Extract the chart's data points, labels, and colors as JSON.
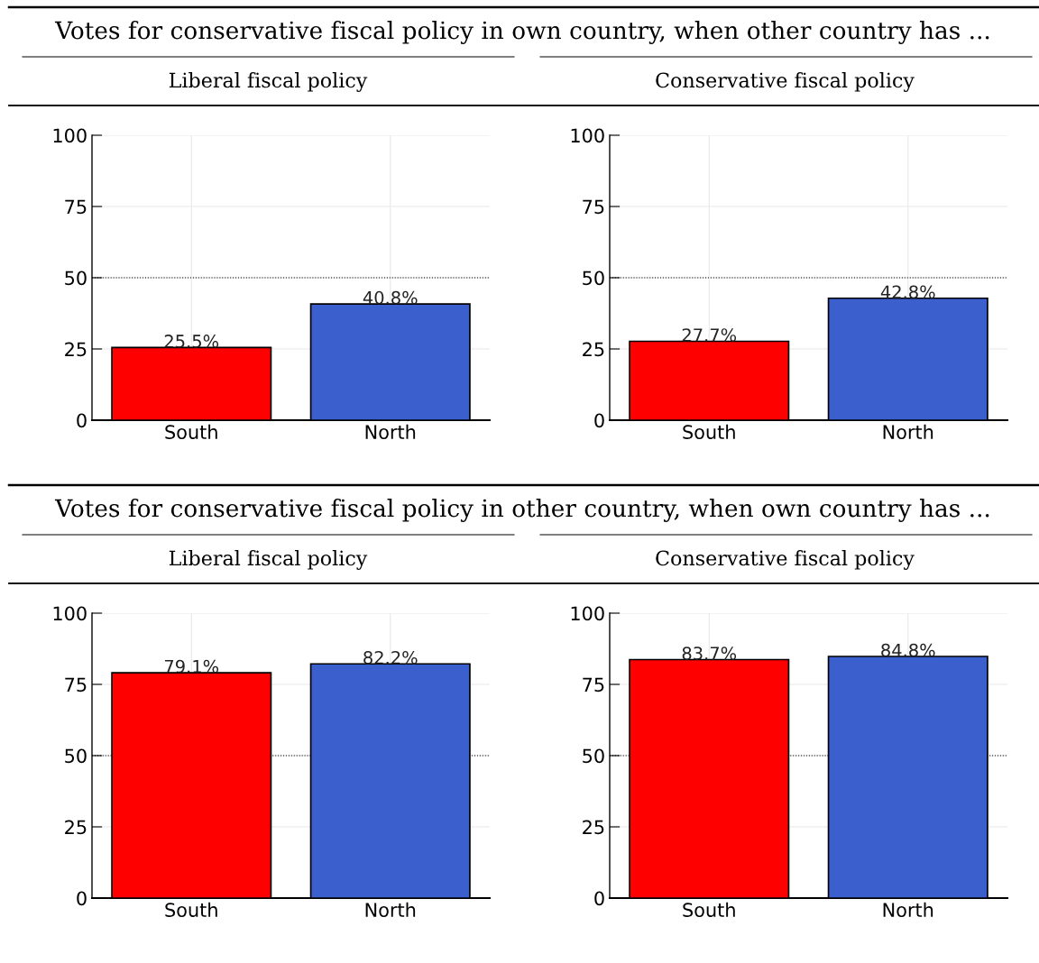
{
  "chart_data": [
    {
      "type": "bar",
      "title": "Liberal fiscal policy",
      "annotations": [
        "Votes for conservative fiscal policy in own country, when other country has ..."
      ],
      "categories": [
        "South",
        "North"
      ],
      "values": [
        25.5,
        40.8
      ],
      "colors": [
        "#ff0000",
        "#3b5fcd"
      ],
      "value_labels": [
        "25.5%",
        "40.8%"
      ],
      "ylim": [
        0,
        100
      ],
      "yticks": [
        0,
        25,
        50,
        75,
        100
      ],
      "grid": true,
      "legend": false,
      "ref_lines": [
        {
          "axis": "y",
          "value": 50,
          "line_style": "dotted",
          "color": "#000000"
        }
      ]
    },
    {
      "type": "bar",
      "title": "Conservative fiscal policy",
      "categories": [
        "South",
        "North"
      ],
      "values": [
        27.7,
        42.8
      ],
      "colors": [
        "#ff0000",
        "#3b5fcd"
      ],
      "value_labels": [
        "27.7%",
        "42.8%"
      ],
      "ylim": [
        0,
        100
      ],
      "yticks": [
        0,
        25,
        50,
        75,
        100
      ],
      "grid": true,
      "legend": false,
      "ref_lines": [
        {
          "axis": "y",
          "value": 50,
          "line_style": "dotted",
          "color": "#000000"
        }
      ]
    },
    {
      "type": "bar",
      "title": "Liberal fiscal policy",
      "annotations": [
        "Votes for conservative fiscal policy in other country, when own country has ..."
      ],
      "categories": [
        "South",
        "North"
      ],
      "values": [
        79.1,
        82.2
      ],
      "colors": [
        "#ff0000",
        "#3b5fcd"
      ],
      "value_labels": [
        "79.1%",
        "82.2%"
      ],
      "ylim": [
        0,
        100
      ],
      "yticks": [
        0,
        25,
        50,
        75,
        100
      ],
      "grid": true,
      "legend": false,
      "ref_lines": [
        {
          "axis": "y",
          "value": 50,
          "line_style": "dotted",
          "color": "#000000"
        }
      ]
    },
    {
      "type": "bar",
      "title": "Conservative fiscal policy",
      "categories": [
        "South",
        "North"
      ],
      "values": [
        83.7,
        84.8
      ],
      "colors": [
        "#ff0000",
        "#3b5fcd"
      ],
      "value_labels": [
        "83.7%",
        "84.8%"
      ],
      "ylim": [
        0,
        100
      ],
      "yticks": [
        0,
        25,
        50,
        75,
        100
      ],
      "grid": true,
      "legend": false,
      "ref_lines": [
        {
          "axis": "y",
          "value": 50,
          "line_style": "dotted",
          "color": "#000000"
        }
      ]
    }
  ]
}
